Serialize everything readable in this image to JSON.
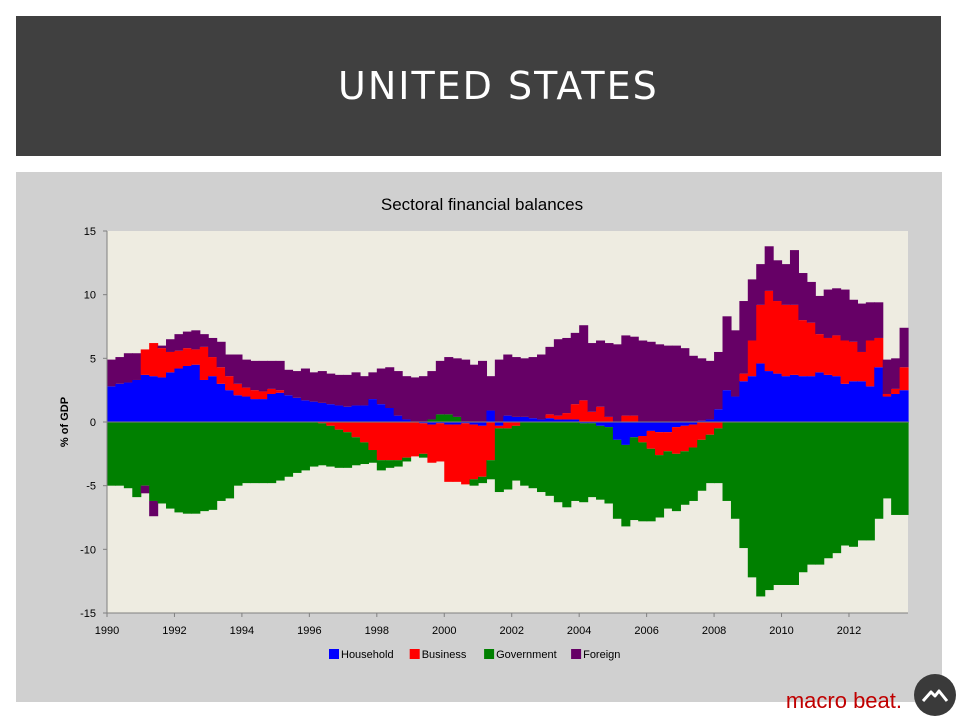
{
  "slide": {
    "title": "UNITED STATES"
  },
  "brand": {
    "text": "macro beat."
  },
  "chart_data": {
    "type": "bar",
    "stacked": true,
    "title": "Sectoral financial balances",
    "xlabel": "",
    "ylabel": "% of GDP",
    "ylim": [
      -15,
      15
    ],
    "yticks": [
      15,
      10,
      5,
      0,
      -5,
      -10,
      -15
    ],
    "xlim": [
      1990,
      2013.75
    ],
    "xticks": [
      "1990",
      "1992",
      "1994",
      "1996",
      "1998",
      "2000",
      "2002",
      "2004",
      "2006",
      "2008",
      "2010",
      "2012"
    ],
    "grid": false,
    "legend_position": "bottom",
    "x": [
      1990.0,
      1990.25,
      1990.5,
      1990.75,
      1991.0,
      1991.25,
      1991.5,
      1991.75,
      1992.0,
      1992.25,
      1992.5,
      1992.75,
      1993.0,
      1993.25,
      1993.5,
      1993.75,
      1994.0,
      1994.25,
      1994.5,
      1994.75,
      1995.0,
      1995.25,
      1995.5,
      1995.75,
      1996.0,
      1996.25,
      1996.5,
      1996.75,
      1997.0,
      1997.25,
      1997.5,
      1997.75,
      1998.0,
      1998.25,
      1998.5,
      1998.75,
      1999.0,
      1999.25,
      1999.5,
      1999.75,
      2000.0,
      2000.25,
      2000.5,
      2000.75,
      2001.0,
      2001.25,
      2001.5,
      2001.75,
      2002.0,
      2002.25,
      2002.5,
      2002.75,
      2003.0,
      2003.25,
      2003.5,
      2003.75,
      2004.0,
      2004.25,
      2004.5,
      2004.75,
      2005.0,
      2005.25,
      2005.5,
      2005.75,
      2006.0,
      2006.25,
      2006.5,
      2006.75,
      2007.0,
      2007.25,
      2007.5,
      2007.75,
      2008.0,
      2008.25,
      2008.5,
      2008.75,
      2009.0,
      2009.25,
      2009.5,
      2009.75,
      2010.0,
      2010.25,
      2010.5,
      2010.75,
      2011.0,
      2011.25,
      2011.5,
      2011.75,
      2012.0,
      2012.25,
      2012.5,
      2012.75,
      2013.0,
      2013.25,
      2013.5
    ],
    "series": [
      {
        "name": "Household",
        "color": "#0000ff",
        "values": [
          2.8,
          3.0,
          3.1,
          3.3,
          3.7,
          3.6,
          3.5,
          3.9,
          4.2,
          4.4,
          4.5,
          3.3,
          3.6,
          3.0,
          2.5,
          2.1,
          2.0,
          1.8,
          1.8,
          2.2,
          2.3,
          2.1,
          1.9,
          1.7,
          1.6,
          1.5,
          1.4,
          1.3,
          1.2,
          1.3,
          1.3,
          1.8,
          1.4,
          1.1,
          0.5,
          0.2,
          0.0,
          -0.1,
          -0.2,
          -0.1,
          -0.2,
          -0.2,
          -0.1,
          -0.2,
          -0.3,
          0.9,
          -0.3,
          0.5,
          0.4,
          0.4,
          0.3,
          0.2,
          0.3,
          0.2,
          0.2,
          0.2,
          -0.1,
          -0.1,
          -0.3,
          -0.4,
          -1.4,
          -1.8,
          -1.2,
          -1.1,
          -0.7,
          -0.8,
          -0.8,
          -0.4,
          -0.3,
          -0.2,
          0.1,
          0.2,
          1.0,
          2.5,
          2.0,
          3.2,
          3.6,
          4.6,
          4.0,
          3.8,
          3.6,
          3.7,
          3.6,
          3.6,
          3.9,
          3.7,
          3.6,
          3.0,
          3.2,
          3.2,
          2.8,
          4.3,
          2.0,
          2.2,
          2.5
        ]
      },
      {
        "name": "Business",
        "color": "#ff0000",
        "values": [
          0.0,
          0.0,
          0.0,
          0.0,
          2.0,
          2.6,
          2.3,
          1.6,
          1.4,
          1.4,
          1.2,
          2.6,
          1.5,
          1.3,
          1.1,
          0.9,
          0.7,
          0.7,
          0.6,
          0.4,
          0.2,
          0.0,
          0.0,
          0.0,
          0.0,
          -0.1,
          -0.3,
          -0.6,
          -0.8,
          -1.2,
          -1.6,
          -2.2,
          -3.0,
          -3.0,
          -3.0,
          -2.8,
          -2.7,
          -2.4,
          -3.0,
          -3.0,
          -4.5,
          -4.5,
          -4.8,
          -4.3,
          -4.0,
          -3.0,
          -0.2,
          -0.5,
          -0.3,
          0.0,
          0.0,
          0.0,
          0.3,
          0.3,
          0.5,
          1.2,
          1.7,
          0.8,
          1.2,
          0.4,
          0.0,
          0.5,
          0.5,
          -0.5,
          -1.4,
          -1.8,
          -1.5,
          -2.1,
          -2.0,
          -1.8,
          -1.4,
          -1.0,
          -0.5,
          0.0,
          0.0,
          0.6,
          2.8,
          4.6,
          6.3,
          5.7,
          5.6,
          5.5,
          4.4,
          4.2,
          3.0,
          2.9,
          3.2,
          3.4,
          3.1,
          2.3,
          3.6,
          2.3,
          0.2,
          0.4,
          1.8
        ]
      },
      {
        "name": "Government",
        "color": "#008000",
        "values": [
          -5.0,
          -5.0,
          -5.2,
          -5.9,
          -5.0,
          -6.2,
          -6.4,
          -6.8,
          -7.1,
          -7.2,
          -7.2,
          -7.0,
          -6.9,
          -6.2,
          -6.0,
          -5.0,
          -4.8,
          -4.8,
          -4.8,
          -4.8,
          -4.6,
          -4.3,
          -4.0,
          -3.8,
          -3.5,
          -3.3,
          -3.2,
          -3.0,
          -2.8,
          -2.2,
          -1.7,
          -1.0,
          -0.8,
          -0.6,
          -0.5,
          -0.3,
          0.0,
          -0.3,
          0.2,
          0.6,
          0.6,
          0.4,
          0.0,
          -0.5,
          -0.5,
          -1.5,
          -5.0,
          -4.8,
          -4.3,
          -5.0,
          -5.2,
          -5.5,
          -5.8,
          -6.3,
          -6.7,
          -6.2,
          -6.2,
          -5.8,
          -5.8,
          -6.0,
          -6.2,
          -6.4,
          -6.5,
          -6.2,
          -5.7,
          -4.9,
          -4.5,
          -4.5,
          -4.2,
          -4.2,
          -4.0,
          -3.8,
          -4.3,
          -6.2,
          -7.6,
          -9.9,
          -12.2,
          -13.7,
          -13.2,
          -12.8,
          -12.8,
          -12.8,
          -11.8,
          -11.2,
          -11.2,
          -10.7,
          -10.3,
          -9.7,
          -9.8,
          -9.3,
          -9.3,
          -7.6,
          -6.0,
          -7.3,
          -7.3
        ]
      },
      {
        "name": "Foreign",
        "color": "#660066",
        "values": [
          2.1,
          2.1,
          2.3,
          2.1,
          -0.6,
          -1.2,
          0.2,
          1.0,
          1.3,
          1.3,
          1.5,
          1.0,
          1.5,
          2.0,
          1.7,
          2.3,
          2.2,
          2.3,
          2.4,
          2.2,
          2.3,
          2.0,
          2.1,
          2.5,
          2.3,
          2.5,
          2.4,
          2.4,
          2.5,
          2.6,
          2.3,
          2.1,
          2.8,
          3.2,
          3.5,
          3.4,
          3.5,
          3.6,
          3.8,
          4.2,
          4.5,
          4.6,
          4.9,
          4.5,
          4.8,
          2.7,
          4.9,
          4.8,
          4.7,
          4.6,
          4.8,
          5.1,
          5.3,
          6.0,
          5.9,
          5.6,
          5.9,
          5.4,
          5.2,
          5.8,
          6.1,
          6.3,
          6.2,
          6.4,
          6.3,
          6.1,
          6.0,
          6.0,
          5.8,
          5.2,
          4.9,
          4.6,
          4.5,
          5.8,
          5.2,
          5.7,
          4.8,
          3.2,
          3.5,
          3.2,
          3.2,
          4.3,
          3.7,
          3.2,
          3.0,
          3.8,
          3.7,
          4.0,
          3.3,
          3.8,
          3.0,
          2.8,
          2.7,
          2.4,
          3.1
        ]
      }
    ]
  }
}
